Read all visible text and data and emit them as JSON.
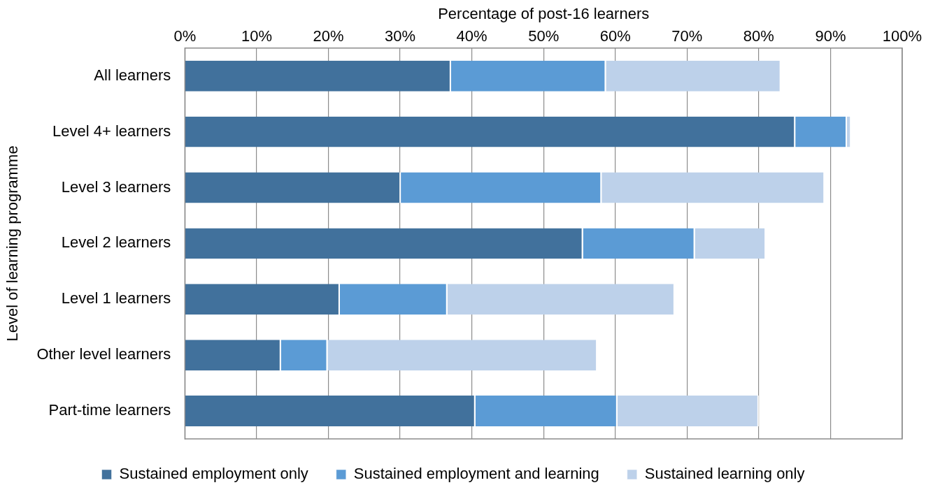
{
  "chart_data": {
    "type": "bar",
    "orientation": "horizontal",
    "stacked": true,
    "xlabel": "Percentage of post-16 learners",
    "ylabel": "Level of learning programme",
    "categories": [
      "All learners",
      "Level 4+ learners",
      "Level 3 learners",
      "Level 2 learners",
      "Level 1 learners",
      "Other level learners",
      "Part-time learners"
    ],
    "series": [
      {
        "name": "Sustained employment only",
        "color": "#41719c",
        "values": [
          37.1,
          85.1,
          30.1,
          55.5,
          21.6,
          13.4,
          40.5
        ]
      },
      {
        "name": "Sustained employment and learning",
        "color": "#5b9bd5",
        "values": [
          21.6,
          7.2,
          28.0,
          15.6,
          15.0,
          6.5,
          19.8
        ]
      },
      {
        "name": "Sustained learning only",
        "color": "#bdd1ea",
        "values": [
          24.4,
          0.6,
          31.1,
          9.9,
          31.7,
          37.6,
          19.7
        ]
      }
    ],
    "xlim": [
      0,
      100
    ],
    "xticks": [
      {
        "value": 0,
        "label": "0%"
      },
      {
        "value": 10,
        "label": "10%"
      },
      {
        "value": 20,
        "label": "20%"
      },
      {
        "value": 30,
        "label": "30%"
      },
      {
        "value": 40,
        "label": "40%"
      },
      {
        "value": 50,
        "label": "50%"
      },
      {
        "value": 60,
        "label": "60%"
      },
      {
        "value": 70,
        "label": "70%"
      },
      {
        "value": 80,
        "label": "80%"
      },
      {
        "value": 90,
        "label": "90%"
      },
      {
        "value": 100,
        "label": "100%"
      }
    ],
    "grid": "x",
    "legend": "bottom"
  }
}
